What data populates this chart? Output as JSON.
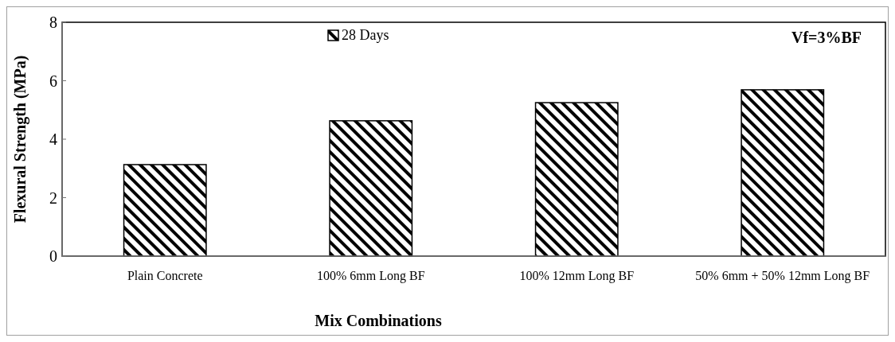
{
  "chart_data": {
    "type": "bar",
    "xlabel": "Mix Combinations",
    "ylabel": "Flexural Strength (MPa)",
    "categories": [
      "Plain Concrete",
      "100%  6mm Long BF",
      "100%  12mm Long BF",
      "50%  6mm + 50%  12mm Long BF"
    ],
    "series": [
      {
        "name": "28 Days",
        "color": "#000000",
        "values": [
          3.13,
          4.63,
          5.25,
          5.69
        ]
      }
    ],
    "ylim": [
      0,
      8
    ],
    "yticks": [
      0,
      2,
      4,
      6,
      8
    ],
    "legend": "top",
    "grid": false,
    "annotations": [
      "Vf=3%BF"
    ]
  }
}
